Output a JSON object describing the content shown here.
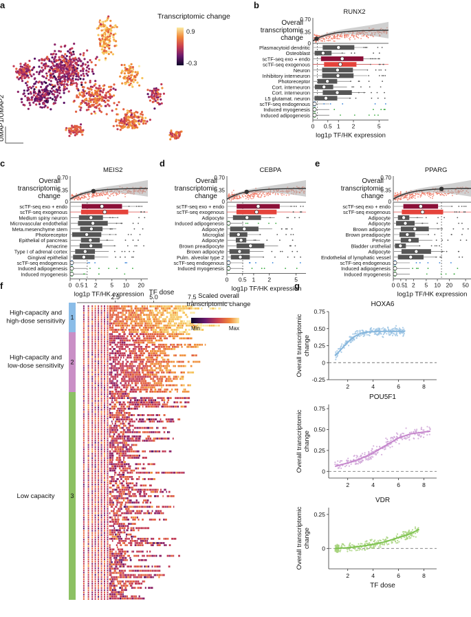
{
  "panel_labels": [
    "a",
    "b",
    "c",
    "d",
    "e",
    "f",
    "g"
  ],
  "umap": {
    "colorbar_title": "Transcriptomic change",
    "colorbar_max": "0.9",
    "colorbar_min": "-0.3",
    "axis_label": "UMAP1/UMAP2"
  },
  "chart_data": [
    {
      "id": "b",
      "type": "scatter+box",
      "title": "RUNX2",
      "ylabel": "Overall transcriptomic change",
      "yticks": [
        "0.70",
        "0.35",
        "0"
      ],
      "ylim": [
        0,
        0.7
      ],
      "xlabel": "log1p TF/HK expression",
      "xticks": [
        "0",
        "0.5",
        "1",
        "2",
        "5"
      ],
      "box_rows": [
        {
          "label": "Plasmacytoid dendritic",
          "color": "#111111"
        },
        {
          "label": "Osteoblast",
          "color": "#111111"
        },
        {
          "label": "scTF-seq exo + endo",
          "color": "#b3123c"
        },
        {
          "label": "scTF-seq exogenous",
          "color": "#e8413f"
        },
        {
          "label": "Neuron",
          "color": "#111111"
        },
        {
          "label": "Inhibitory interneuron",
          "color": "#111111"
        },
        {
          "label": "Photoreceptor",
          "color": "#111111"
        },
        {
          "label": "Cort. interneuron",
          "color": "#111111"
        },
        {
          "label": "Cort. interneuron",
          "color": "#111111"
        },
        {
          "label": "L5 glutamat. neuron",
          "color": "#111111"
        },
        {
          "label": "scTF-seq endogenous",
          "color": "#2c7bd6"
        },
        {
          "label": "Induced myogenesis",
          "color": "#35a83a"
        },
        {
          "label": "Induced adipogenesis",
          "color": "#35a83a"
        }
      ]
    },
    {
      "id": "c",
      "type": "scatter+box",
      "title": "MEIS2",
      "ylabel": "Overall transcriptomic change",
      "yticks": [
        "0.70",
        "0.35",
        "0"
      ],
      "ylim": [
        0,
        0.7
      ],
      "xlabel": "log1p TF/HK expression",
      "xticks": [
        "0",
        "0.5",
        "1",
        "2",
        "5",
        "10",
        "20"
      ],
      "box_rows": [
        {
          "label": "scTF-seq exo + endo",
          "color": "#b3123c"
        },
        {
          "label": "scTF-seq exogenous",
          "color": "#e8413f"
        },
        {
          "label": "Medium spiny neuron",
          "color": "#111111"
        },
        {
          "label": "Microvascular endothelial",
          "color": "#111111"
        },
        {
          "label": "Meta.mesenchyme stem",
          "color": "#111111"
        },
        {
          "label": "Photoreceptor",
          "color": "#111111"
        },
        {
          "label": "Epithelial of pancreas",
          "color": "#111111"
        },
        {
          "label": "Amacrine",
          "color": "#111111"
        },
        {
          "label": "Type I of adrenal cortex",
          "color": "#111111"
        },
        {
          "label": "Gingival epithelial",
          "color": "#111111"
        },
        {
          "label": "scTF-seq endogenous",
          "color": "#2c7bd6"
        },
        {
          "label": "Induced adipogenesis",
          "color": "#35a83a"
        },
        {
          "label": "Induced myogenesis",
          "color": "#35a83a"
        }
      ]
    },
    {
      "id": "d",
      "type": "scatter+box",
      "title": "CEBPA",
      "ylabel": "Overall transcriptomic change",
      "yticks": [
        "0.70",
        "0.35",
        "0"
      ],
      "ylim": [
        0,
        0.7
      ],
      "xlabel": "log1p TF/HK expression",
      "xticks": [
        "0",
        "0.5",
        "1",
        "2",
        "5"
      ],
      "box_rows": [
        {
          "label": "scTF-seq exo + endo",
          "color": "#b3123c"
        },
        {
          "label": "scTF-seq exogenous",
          "color": "#e8413f"
        },
        {
          "label": "Adipocyte",
          "color": "#111111"
        },
        {
          "label": "Induced adipogenesis",
          "color": "#35a83a"
        },
        {
          "label": "Adipocyte",
          "color": "#111111"
        },
        {
          "label": "Microglial",
          "color": "#111111"
        },
        {
          "label": "Adipocyte",
          "color": "#111111"
        },
        {
          "label": "Brown preadipocyte",
          "color": "#111111"
        },
        {
          "label": "Brown adipocyte",
          "color": "#111111"
        },
        {
          "label": "Pulm. alveolar type 2",
          "color": "#111111"
        },
        {
          "label": "scTF-seq endogenous",
          "color": "#2c7bd6"
        },
        {
          "label": "Induced myogenesis",
          "color": "#35a83a"
        }
      ]
    },
    {
      "id": "e",
      "type": "scatter+box",
      "title": "PPARG",
      "ylabel": "Overall transcriptomic change",
      "yticks": [
        "0.70",
        "0.35",
        "0"
      ],
      "ylim": [
        0,
        0.7
      ],
      "xlabel": "log1p TF/HK expression",
      "xticks": [
        "0",
        "0.5",
        "1",
        "2",
        "5",
        "10",
        "20",
        "50"
      ],
      "box_rows": [
        {
          "label": "scTF-seq exo + endo",
          "color": "#b3123c"
        },
        {
          "label": "scTF-seq exogenous",
          "color": "#e8413f"
        },
        {
          "label": "Adipocyte",
          "color": "#111111"
        },
        {
          "label": "Adipocyte",
          "color": "#111111"
        },
        {
          "label": "Brown adipocyte",
          "color": "#111111"
        },
        {
          "label": "Brown preadipocyte",
          "color": "#111111"
        },
        {
          "label": "Pericyte",
          "color": "#111111"
        },
        {
          "label": "Bladder urothelial",
          "color": "#111111"
        },
        {
          "label": "Adipocyte",
          "color": "#111111"
        },
        {
          "label": "Endothelial of lymphatic vessel",
          "color": "#111111"
        },
        {
          "label": "scTF-seq endogenous",
          "color": "#2c7bd6"
        },
        {
          "label": "Induced adipogenesis",
          "color": "#35a83a"
        },
        {
          "label": "Induced myogenesis",
          "color": "#35a83a"
        }
      ]
    },
    {
      "id": "f",
      "type": "heatmap",
      "title": "TF dose",
      "xticks": [
        "2.5",
        "5.0",
        "7.5"
      ],
      "xlim": [
        0,
        10
      ],
      "legend_title": "Scaled overall transcriptomic change",
      "legend_min": "Min",
      "legend_max": "Max",
      "groups": [
        {
          "num": "1",
          "label": "High-capacity and high-dose sensitivity",
          "color": "#8bbde8"
        },
        {
          "num": "2",
          "label": "High-capacity and low-dose sensitivity",
          "color": "#c98fc6"
        },
        {
          "num": "3",
          "label": "Low capacity",
          "color": "#8cc163"
        }
      ]
    },
    {
      "id": "g",
      "type": "scatter",
      "title": "HOXA6",
      "ylabel": "Overall transcriptomic change",
      "yticks": [
        "0.75",
        "0.50",
        "0.25",
        "0",
        "-0.25"
      ],
      "ylim": [
        -0.25,
        0.75
      ],
      "xticks": [
        "2",
        "4",
        "6",
        "8"
      ],
      "xlim": [
        0.5,
        9
      ],
      "color": "#9cc4e4",
      "line": "#86b6dc",
      "fit": [
        [
          1.0,
          0.1
        ],
        [
          1.5,
          0.2
        ],
        [
          2.0,
          0.3
        ],
        [
          2.5,
          0.38
        ],
        [
          3.0,
          0.43
        ],
        [
          3.5,
          0.45
        ],
        [
          4.5,
          0.46
        ],
        [
          6.5,
          0.46
        ]
      ]
    },
    {
      "id": "g2",
      "type": "scatter",
      "title": "POU5F1",
      "ylabel": "Overall transcriptomic change",
      "yticks": [
        "0.75",
        "0.50",
        "0.25",
        "0"
      ],
      "ylim": [
        -0.08,
        0.8
      ],
      "xticks": [
        "2",
        "4",
        "6",
        "8"
      ],
      "xlim": [
        0.5,
        9
      ],
      "color": "#d0a6d8",
      "line": "#c586cc",
      "fit": [
        [
          1.0,
          0.06
        ],
        [
          2.0,
          0.1
        ],
        [
          3.0,
          0.15
        ],
        [
          4.0,
          0.22
        ],
        [
          5.0,
          0.31
        ],
        [
          6.0,
          0.4
        ],
        [
          7.0,
          0.45
        ],
        [
          8.5,
          0.48
        ]
      ]
    },
    {
      "id": "g3",
      "type": "scatter",
      "title": "VDR",
      "ylabel": "Overall transcriptomic change",
      "yticks": [
        "0.25",
        "0"
      ],
      "ylim": [
        -0.15,
        0.3
      ],
      "xticks": [
        "2",
        "4",
        "6",
        "8"
      ],
      "xlim": [
        0.5,
        9
      ],
      "xlabel": "TF dose",
      "color": "#a8d47f",
      "line": "#7ec350",
      "fit": [
        [
          1.0,
          0.0
        ],
        [
          2.0,
          0.005
        ],
        [
          3.0,
          0.015
        ],
        [
          4.0,
          0.03
        ],
        [
          5.0,
          0.05
        ],
        [
          6.0,
          0.08
        ],
        [
          7.0,
          0.11
        ],
        [
          7.6,
          0.14
        ]
      ]
    }
  ]
}
